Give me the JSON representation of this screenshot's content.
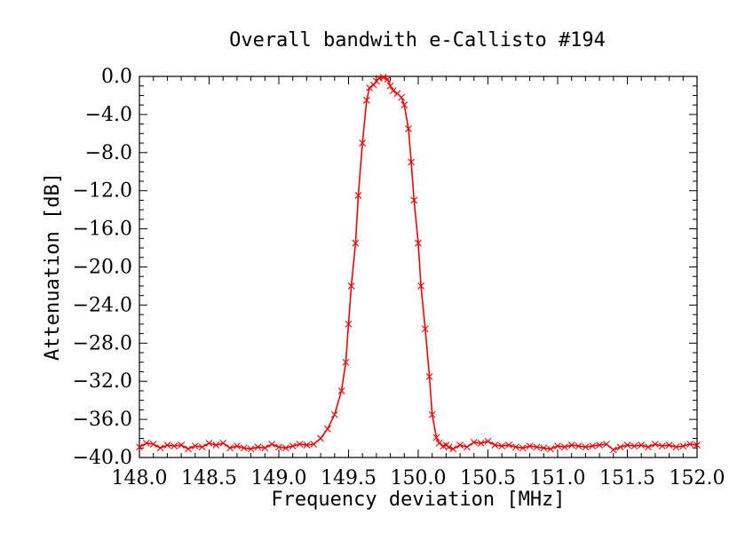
{
  "chart_data": {
    "type": "line",
    "title": "Overall bandwith e-Callisto #194",
    "xlabel": "Frequency deviation [MHz]",
    "ylabel": "Attenuation [dB]",
    "xlim": [
      148.0,
      152.0
    ],
    "ylim": [
      -40.0,
      0.0
    ],
    "xticks": [
      148.0,
      148.5,
      149.0,
      149.5,
      150.0,
      150.5,
      151.0,
      151.5,
      152.0
    ],
    "xtick_labels": [
      "148.0",
      "148.5",
      "149.0",
      "149.5",
      "150.0",
      "150.5",
      "151.0",
      "151.5",
      "152.0"
    ],
    "yticks": [
      0.0,
      -4.0,
      -8.0,
      -12.0,
      -16.0,
      -20.0,
      -24.0,
      -28.0,
      -32.0,
      -36.0,
      -40.0
    ],
    "ytick_labels": [
      "0.0",
      "−4.0",
      "−8.0",
      "−12.0",
      "−16.0",
      "−20.0",
      "−24.0",
      "−28.0",
      "−32.0",
      "−36.0",
      "−40.0"
    ],
    "grid": false,
    "series": [
      {
        "color": "#ff0000",
        "marker": "x",
        "x": [
          148.0,
          148.05,
          148.1,
          148.15,
          148.2,
          148.25,
          148.3,
          148.35,
          148.4,
          148.45,
          148.5,
          148.55,
          148.6,
          148.65,
          148.7,
          148.75,
          148.8,
          148.85,
          148.9,
          148.95,
          149.0,
          149.05,
          149.1,
          149.15,
          149.2,
          149.25,
          149.3,
          149.35,
          149.4,
          149.45,
          149.48,
          149.5,
          149.52,
          149.55,
          149.57,
          149.6,
          149.63,
          149.65,
          149.68,
          149.7,
          149.72,
          149.75,
          149.78,
          149.8,
          149.82,
          149.85,
          149.88,
          149.9,
          149.93,
          149.95,
          149.97,
          150.0,
          150.02,
          150.05,
          150.08,
          150.1,
          150.13,
          150.15,
          150.18,
          150.2,
          150.22,
          150.25,
          150.3,
          150.35,
          150.4,
          150.45,
          150.5,
          150.55,
          150.6,
          150.65,
          150.7,
          150.75,
          150.8,
          150.85,
          150.9,
          150.95,
          151.0,
          151.05,
          151.1,
          151.15,
          151.2,
          151.25,
          151.3,
          151.35,
          151.4,
          151.45,
          151.5,
          151.55,
          151.6,
          151.65,
          151.7,
          151.75,
          151.8,
          151.85,
          151.9,
          151.95,
          152.0
        ],
        "y": [
          -38.9,
          -38.5,
          -38.6,
          -39.0,
          -38.7,
          -38.8,
          -38.7,
          -39.1,
          -38.8,
          -38.9,
          -38.5,
          -38.7,
          -38.5,
          -39.0,
          -38.8,
          -39.0,
          -39.1,
          -38.9,
          -39.0,
          -38.6,
          -38.9,
          -39.0,
          -38.8,
          -38.6,
          -38.7,
          -38.6,
          -38.0,
          -37.0,
          -35.5,
          -33.0,
          -30.0,
          -26.0,
          -22.0,
          -17.5,
          -12.5,
          -7.0,
          -2.5,
          -1.2,
          -0.9,
          -0.5,
          -0.2,
          -0.1,
          -0.3,
          -1.0,
          -1.5,
          -1.8,
          -2.2,
          -3.0,
          -5.5,
          -9.0,
          -13.0,
          -17.5,
          -22.0,
          -26.5,
          -31.5,
          -35.5,
          -37.9,
          -38.5,
          -38.8,
          -38.7,
          -38.9,
          -39.1,
          -38.7,
          -38.9,
          -38.4,
          -38.5,
          -38.3,
          -38.7,
          -38.8,
          -38.7,
          -38.9,
          -39.0,
          -38.8,
          -38.9,
          -39.0,
          -39.1,
          -38.8,
          -38.9,
          -38.7,
          -38.8,
          -38.9,
          -38.8,
          -38.7,
          -38.6,
          -39.2,
          -38.9,
          -38.7,
          -38.8,
          -38.7,
          -38.9,
          -38.6,
          -38.8,
          -38.7,
          -38.9,
          -38.8,
          -38.6,
          -38.7
        ]
      }
    ]
  }
}
